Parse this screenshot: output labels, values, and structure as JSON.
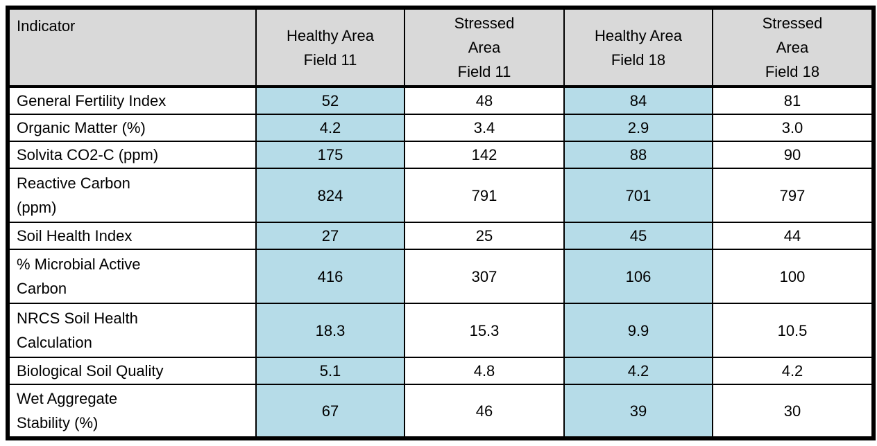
{
  "table": {
    "columns": [
      {
        "label": "Indicator",
        "highlight": false
      },
      {
        "label": "Healthy Area\nField 11",
        "highlight": true
      },
      {
        "label": "Stressed\nArea\nField 11",
        "highlight": false
      },
      {
        "label": "Healthy Area\nField 18",
        "highlight": true
      },
      {
        "label": "Stressed\nArea\nField 18",
        "highlight": false
      }
    ],
    "rows": [
      {
        "indicator": "General Fertility Index",
        "values": [
          "52",
          "48",
          "84",
          "81"
        ],
        "tall": false
      },
      {
        "indicator": "Organic Matter (%)",
        "values": [
          "4.2",
          "3.4",
          "2.9",
          "3.0"
        ],
        "tall": false
      },
      {
        "indicator": "Solvita CO2-C (ppm)",
        "values": [
          "175",
          "142",
          "88",
          "90"
        ],
        "tall": false
      },
      {
        "indicator": "Reactive Carbon\n(ppm)",
        "values": [
          "824",
          "791",
          "701",
          "797"
        ],
        "tall": true
      },
      {
        "indicator": "Soil Health Index",
        "values": [
          "27",
          "25",
          "45",
          "44"
        ],
        "tall": false
      },
      {
        "indicator": "% Microbial Active\nCarbon",
        "values": [
          "416",
          "307",
          "106",
          "100"
        ],
        "tall": true
      },
      {
        "indicator": "NRCS Soil Health\nCalculation",
        "values": [
          "18.3",
          "15.3",
          "9.9",
          "10.5"
        ],
        "tall": true
      },
      {
        "indicator": "Biological Soil Quality",
        "values": [
          "5.1",
          "4.8",
          "4.2",
          "4.2"
        ],
        "tall": false
      },
      {
        "indicator": "Wet Aggregate\nStability (%)",
        "values": [
          "67",
          "46",
          "39",
          "30"
        ],
        "tall": true
      }
    ],
    "colors": {
      "header_bg": "#D9D9D9",
      "highlight_bg": "#B6DCE8",
      "border": "#000000"
    }
  },
  "chart_data": {
    "type": "table",
    "title": "",
    "columns": [
      "Indicator",
      "Healthy Area Field 11",
      "Stressed Area Field 11",
      "Healthy Area Field 18",
      "Stressed Area Field 18"
    ],
    "rows": [
      [
        "General Fertility Index",
        52,
        48,
        84,
        81
      ],
      [
        "Organic Matter (%)",
        4.2,
        3.4,
        2.9,
        3.0
      ],
      [
        "Solvita CO2-C (ppm)",
        175,
        142,
        88,
        90
      ],
      [
        "Reactive Carbon (ppm)",
        824,
        791,
        701,
        797
      ],
      [
        "Soil Health Index",
        27,
        25,
        45,
        44
      ],
      [
        "% Microbial Active Carbon",
        416,
        307,
        106,
        100
      ],
      [
        "NRCS Soil Health Calculation",
        18.3,
        15.3,
        9.9,
        10.5
      ],
      [
        "Biological Soil Quality",
        5.1,
        4.8,
        4.2,
        4.2
      ],
      [
        "Wet Aggregate Stability (%)",
        67,
        46,
        39,
        30
      ]
    ],
    "highlighted_columns": [
      "Healthy Area Field 11",
      "Healthy Area Field 18"
    ]
  }
}
